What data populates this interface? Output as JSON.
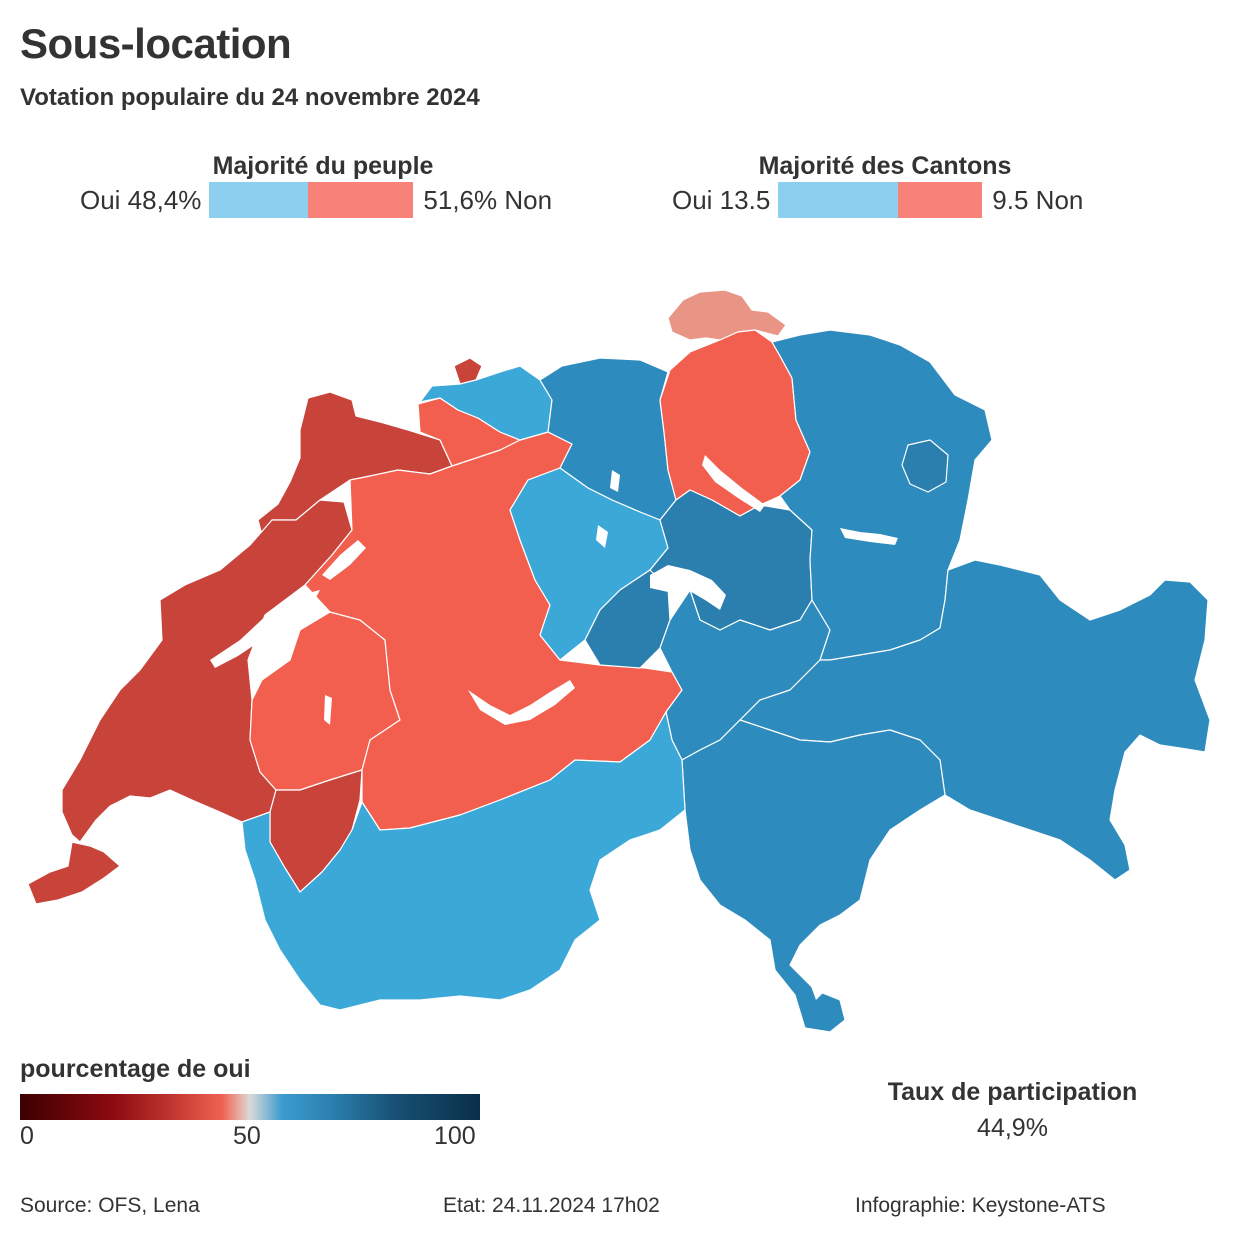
{
  "title": "Sous-location",
  "subtitle": "Votation populaire du 24 novembre 2024",
  "people": {
    "heading": "Majorité du peuple",
    "yes_label": "Oui 48,4%",
    "no_label": "51,6% Non",
    "yes_share": 48.4,
    "no_share": 51.6
  },
  "cantons": {
    "heading": "Majorité des Cantons",
    "yes_label": "Oui 13.5",
    "no_label": "9.5 Non",
    "yes_value": 13.5,
    "no_value": 9.5
  },
  "colors": {
    "yes_light": "#8ccfef",
    "no_light": "#f8827a",
    "no_strong": "#c8433a",
    "no_medium": "#f25f4e",
    "no_pale": "#e99585",
    "yes_medium": "#3ca8d8",
    "yes_dark": "#2e8bbd",
    "yes_darker": "#2b7fae",
    "lake": "#ffffff"
  },
  "scale": {
    "title": "pourcentage de oui",
    "tick_min": "0",
    "tick_mid": "50",
    "tick_max": "100"
  },
  "turnout": {
    "label": "Taux de participation",
    "value": "44,9%"
  },
  "footer": {
    "source": "Source: OFS, Lena",
    "status": "Etat: 24.11.2024 17h02",
    "credit": "Infographie: Keystone-ATS"
  }
}
